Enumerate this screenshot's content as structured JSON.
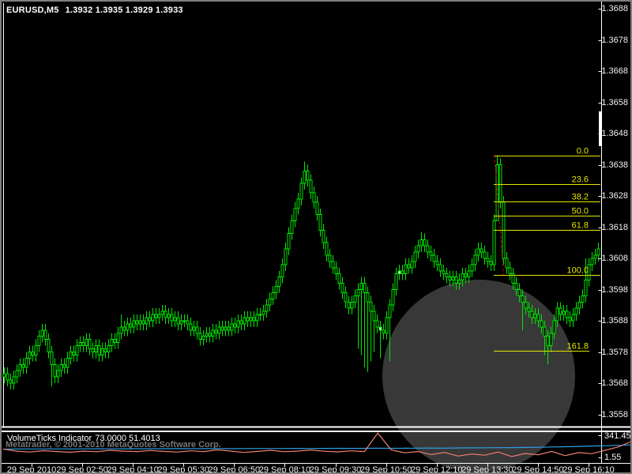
{
  "window": {
    "title_symbol": "EURUSD,M5",
    "title_quotes": "1.3932 1.3935 1.3929 1.3933"
  },
  "watermark": {
    "text": "Metatrader, © 2001-2010 MetaQuotes Software Corp."
  },
  "indicator": {
    "name": "VolumeTicks Indicator",
    "values": "73.0000 51.4013",
    "axis_max": "341.45",
    "axis_min": "1.55"
  },
  "price_axis": {
    "labels": [
      "1.3688",
      "1.3678",
      "1.3668",
      "1.3658",
      "1.3648",
      "1.3638",
      "1.3628",
      "1.3618",
      "1.3608",
      "1.3598",
      "1.3588",
      "1.3578",
      "1.3568",
      "1.3558"
    ]
  },
  "time_axis": {
    "labels": [
      "29 Sep 2010",
      "29 Sep 02:50",
      "29 Sep 04:10",
      "29 Sep 05:30",
      "29 Sep 06:50",
      "29 Sep 08:10",
      "29 Sep 09:30",
      "29 Sep 10:50",
      "29 Sep 12:10",
      "29 Sep 13:30",
      "29 Sep 14:50",
      "29 Sep 16:10"
    ]
  },
  "colors": {
    "background": "#000000",
    "candle": "#00e400",
    "bear_fill": "#ffffff",
    "fib": "#e6e600",
    "fib_trend": "#dd0000",
    "axis_text": "#f2f2f2",
    "watermark_circle": "#383838",
    "indicator_red": "#ef8070",
    "indicator_blue": "#2e9fe6",
    "border": "#ffffff"
  },
  "chart_data": {
    "type": "candlestick",
    "symbol": "EURUSD",
    "timeframe": "M5",
    "title": "EURUSD,M5 1.3932 1.3935 1.3929 1.3933",
    "price_base": 1.35,
    "pip": 0.0001,
    "axis_top_price": 1.3688,
    "axis_step": 0.001,
    "closes_pips": [
      71,
      69,
      68,
      70,
      72,
      74,
      73,
      76,
      78,
      77,
      80,
      83,
      85,
      82,
      78,
      74,
      70,
      72,
      74,
      73,
      76,
      78,
      77,
      80,
      81,
      80,
      82,
      79,
      78,
      80,
      77,
      79,
      78,
      80,
      82,
      81,
      84,
      86,
      85,
      87,
      86,
      88,
      87,
      88,
      87,
      89,
      88,
      90,
      89,
      90,
      91,
      89,
      90,
      88,
      89,
      87,
      88,
      88,
      87,
      85,
      86,
      84,
      82,
      83,
      84,
      83,
      85,
      84,
      86,
      85,
      86,
      85,
      87,
      86,
      88,
      87,
      89,
      88,
      89,
      88,
      90,
      90,
      91,
      93,
      95,
      97,
      99,
      102,
      106,
      111,
      116,
      120,
      124,
      127,
      132,
      136,
      133,
      129,
      126,
      122,
      117,
      113,
      109,
      107,
      105,
      103,
      100,
      97,
      94,
      92,
      94,
      96,
      98,
      100,
      97,
      94,
      91,
      88,
      86,
      85,
      84,
      89,
      93,
      98,
      103,
      104,
      103,
      106,
      105,
      107,
      110,
      112,
      114,
      112,
      110,
      109,
      107,
      106,
      104,
      103,
      102,
      101,
      102,
      100,
      101,
      103,
      102,
      104,
      106,
      109,
      111,
      110,
      108,
      107,
      106,
      120,
      138,
      126,
      108,
      105,
      103,
      100,
      98,
      96,
      94,
      92,
      91,
      89,
      90,
      88,
      86,
      83,
      80,
      84,
      88,
      92,
      90,
      91,
      89,
      88,
      90,
      92,
      94,
      96,
      101,
      106,
      108,
      109,
      111
    ],
    "wick_default_pips": 2,
    "wick_overrides": {
      "2": [
        null,
        66
      ],
      "15": [
        null,
        67
      ],
      "37": [
        90,
        null
      ],
      "95": [
        139,
        null
      ],
      "112": [
        null,
        79
      ],
      "113": [
        null,
        77
      ],
      "114": [
        null,
        73
      ],
      "115": [
        null,
        71.5
      ],
      "116": [
        null,
        75
      ],
      "117": [
        null,
        78
      ],
      "119": [
        null,
        76
      ],
      "122": [
        null,
        75
      ],
      "132": [
        116.5,
        null
      ],
      "156": [
        141,
        129
      ],
      "164": [
        null,
        85
      ],
      "171": [
        null,
        77
      ],
      "172": [
        null,
        74
      ],
      "184": [
        108,
        null
      ]
    },
    "white_body_indices": [
      119,
      125
    ],
    "fibonacci": {
      "levels": [
        {
          "label": "0.0",
          "price": 1.3641
        },
        {
          "label": "23.6",
          "price": 1.36317
        },
        {
          "label": "38.2",
          "price": 1.36262
        },
        {
          "label": "50.0",
          "price": 1.36217
        },
        {
          "label": "61.8",
          "price": 1.36172
        },
        {
          "label": "100.0",
          "price": 1.36026
        },
        {
          "label": "161.8",
          "price": 1.35783
        }
      ]
    },
    "subwindow": {
      "name": "VolumeTicks",
      "range": [
        1.55,
        341.45
      ],
      "current_red": 73.0,
      "current_blue": 51.4013,
      "red": [
        150,
        125,
        115,
        130,
        120,
        112,
        125,
        118,
        135,
        125,
        120,
        132,
        122,
        115,
        128,
        120,
        140,
        126,
        110,
        122,
        135,
        118,
        126,
        138,
        124,
        116,
        128,
        120,
        335,
        140,
        105,
        120,
        85,
        110,
        68,
        92,
        78,
        115,
        62,
        98,
        82,
        122,
        72,
        108,
        95,
        135,
        175,
        240
      ],
      "blue": [
        148,
        149,
        150,
        150,
        151,
        150,
        151,
        152,
        151,
        152,
        153,
        152,
        153,
        154,
        153,
        154,
        155,
        154,
        155,
        156,
        155,
        156,
        157,
        156,
        157,
        158,
        157,
        158,
        159,
        158,
        159,
        160,
        161,
        160,
        162,
        163,
        164,
        165,
        166,
        168,
        170,
        173,
        176,
        180,
        184,
        188,
        193,
        198
      ]
    }
  }
}
